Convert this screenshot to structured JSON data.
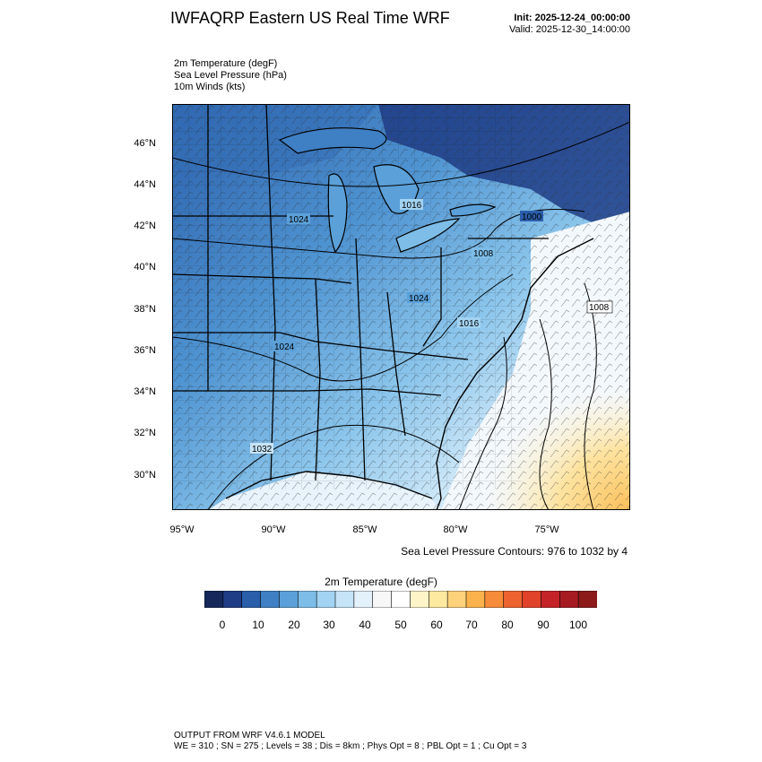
{
  "header": {
    "title": "IWFAQRP Eastern US Real Time WRF",
    "init": "Init: 2025-12-24_00:00:00",
    "valid": "Valid: 2025-12-30_14:00:00"
  },
  "fields": [
    "2m Temperature   (degF)",
    "Sea Level Pressure   (hPa)",
    "10m Winds   (kts)"
  ],
  "map": {
    "lat_labels": [
      "46°N",
      "44°N",
      "42°N",
      "40°N",
      "38°N",
      "36°N",
      "34°N",
      "32°N",
      "30°N"
    ],
    "lon_labels": [
      "95°W",
      "90°W",
      "85°W",
      "80°W",
      "75°W"
    ],
    "pressure_labels": [
      "1016",
      "1024",
      "1000",
      "1008",
      "1024",
      "1016",
      "1008",
      "1024",
      "1032"
    ],
    "colors": {
      "coldest": "#16285a",
      "cold": "#3f8acb",
      "mild": "#d6ecfa",
      "warm": "#fbd27a"
    }
  },
  "contour_note": "Sea Level Pressure Contours: 976 to 1032 by 4",
  "colorbar": {
    "title": "2m Temperature  (degF)",
    "labels": [
      "0",
      "10",
      "20",
      "30",
      "40",
      "50",
      "60",
      "70",
      "80",
      "90",
      "100"
    ],
    "colors": [
      "#16285a",
      "#1f3c86",
      "#2a5eaa",
      "#3f7fc3",
      "#5ba0d8",
      "#7dbde8",
      "#a2d3f2",
      "#c6e4f7",
      "#e3f1fb",
      "#f7f7f7",
      "#ffffff",
      "#fef4c8",
      "#fde9a0",
      "#fdd27a",
      "#fcb24c",
      "#f68b3a",
      "#ec6330",
      "#e0422a",
      "#c42427",
      "#a51b21",
      "#8c1a1a"
    ]
  },
  "footer": {
    "line1": "OUTPUT FROM WRF V4.6.1 MODEL",
    "line2": "WE = 310 ; SN = 275 ; Levels = 38 ; Dis = 8km ; Phys Opt = 8 ; PBL Opt = 1 ; Cu Opt = 3"
  }
}
